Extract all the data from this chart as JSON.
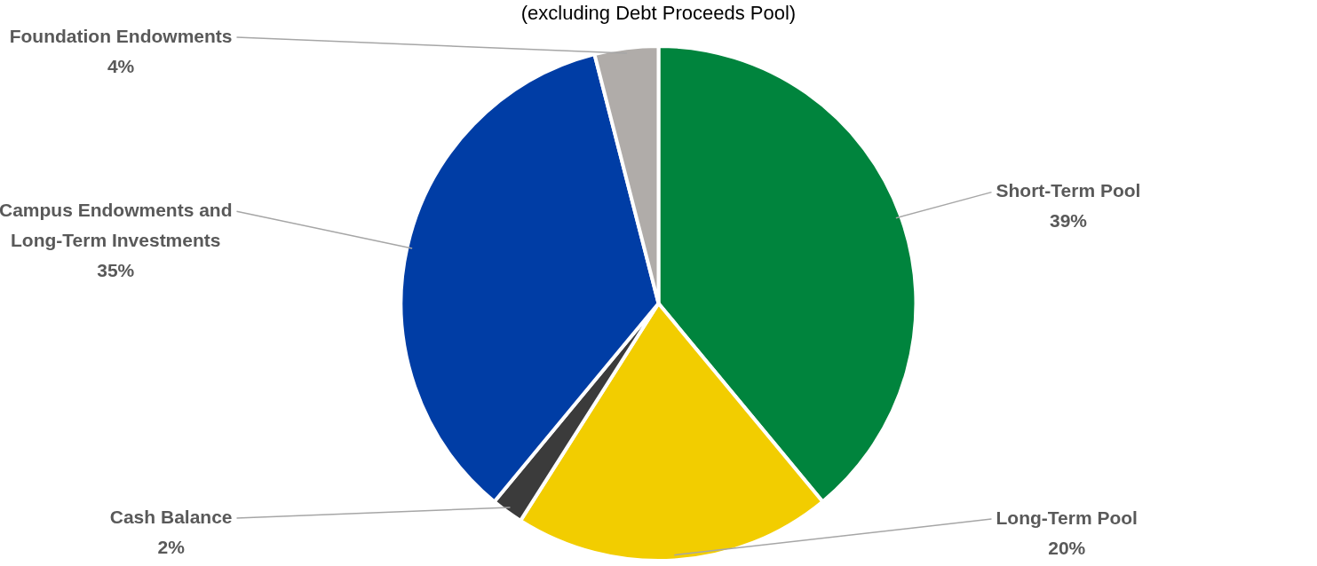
{
  "chart_data": {
    "type": "pie",
    "subtitle": "(excluding Debt Proceeds Pool)",
    "categories": [
      "Short-Term Pool",
      "Long-Term Pool",
      "Cash Balance",
      "Campus Endowments and Long-Term Investments",
      "Foundation Endowments"
    ],
    "values": [
      39,
      20,
      2,
      35,
      4
    ],
    "colors": [
      "#00843d",
      "#f2cd00",
      "#3b3b3b",
      "#003da5",
      "#b0aca9"
    ],
    "value_labels": [
      "39%",
      "20%",
      "2%",
      "35%",
      "4%"
    ],
    "legend": false
  }
}
